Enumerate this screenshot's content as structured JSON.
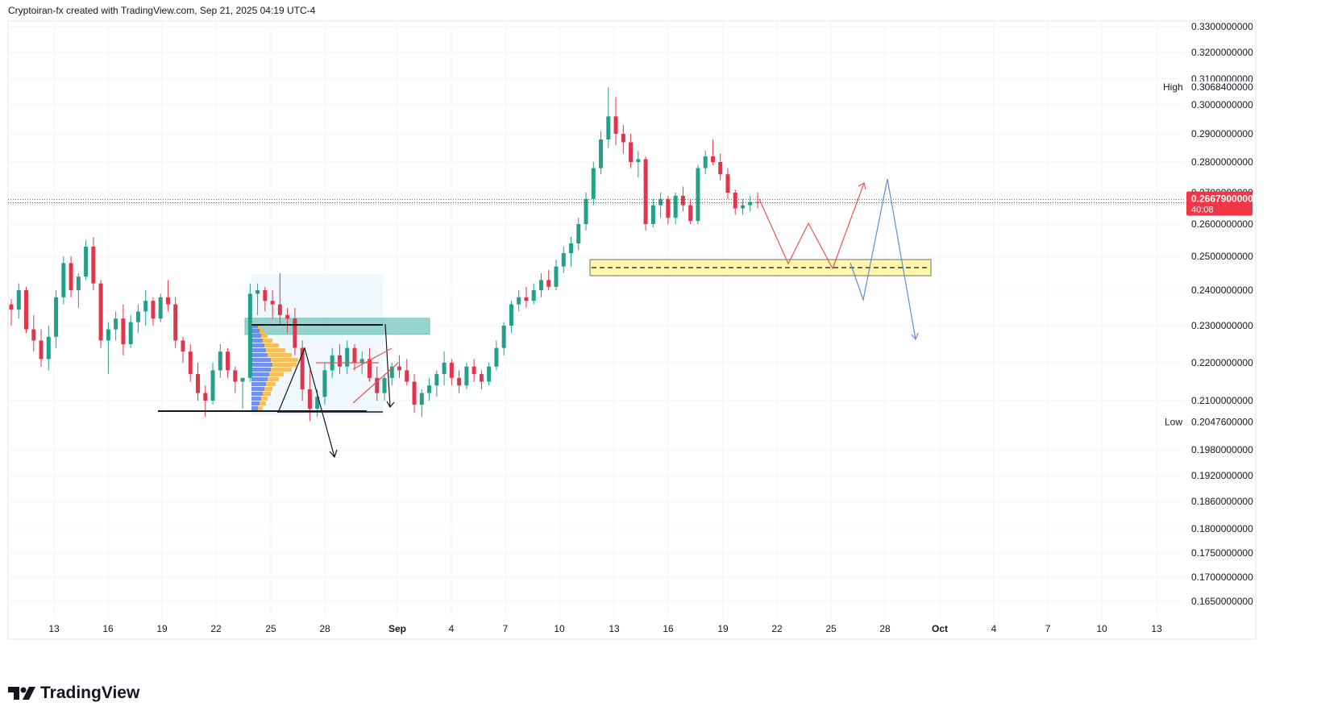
{
  "header": {
    "attribution": "Cryptoiran-fx created with TradingView.com, Sep 21, 2025 04:19 UTC-4"
  },
  "watermark": {
    "text": "TradingView",
    "icon": "tradingview-logo-icon"
  },
  "colors": {
    "up": "#22a08a",
    "down": "#e0354b",
    "grid": "#f0f3fa",
    "price_badge": "#f23645",
    "zone_green": "#80cbc4",
    "zone_yellow": "#fff59d",
    "projection_red": "#ef5350",
    "projection_blue": "#5b8fd6"
  },
  "chart_data": {
    "type": "candlestick",
    "price_axis": {
      "ticks": [
        "0.3300000000",
        "0.3200000000",
        "0.3100000000",
        "0.3000000000",
        "0.2900000000",
        "0.2800000000",
        "0.2700000000",
        "0.2600000000",
        "0.2500000000",
        "0.2400000000",
        "0.2300000000",
        "0.2200000000",
        "0.2100000000",
        "0.1980000000",
        "0.1920000000",
        "0.1860000000",
        "0.1800000000",
        "0.1750000000",
        "0.1700000000",
        "0.1650000000"
      ],
      "tick_values": [
        0.33,
        0.32,
        0.31,
        0.3,
        0.29,
        0.28,
        0.27,
        0.26,
        0.25,
        0.24,
        0.23,
        0.22,
        0.21,
        0.198,
        0.192,
        0.186,
        0.18,
        0.175,
        0.17,
        0.165
      ]
    },
    "time_axis": {
      "ticks": [
        "13",
        "16",
        "19",
        "22",
        "25",
        "28",
        "Sep",
        "4",
        "7",
        "10",
        "13",
        "16",
        "19",
        "22",
        "25",
        "28",
        "Oct",
        "4",
        "7",
        "10",
        "13"
      ]
    },
    "high": {
      "label": "High",
      "value": "0.3068400000",
      "v": 0.30684
    },
    "low": {
      "label": "Low",
      "value": "0.2047600000",
      "v": 0.20476
    },
    "current": {
      "value": "0.2667900000",
      "countdown": "40:08",
      "v": 0.26679
    },
    "candles": [
      [
        0.236,
        0.2375,
        0.23,
        0.2345
      ],
      [
        0.2345,
        0.242,
        0.232,
        0.24
      ],
      [
        0.24,
        0.241,
        0.228,
        0.229
      ],
      [
        0.229,
        0.233,
        0.223,
        0.226
      ],
      [
        0.226,
        0.229,
        0.219,
        0.221
      ],
      [
        0.221,
        0.23,
        0.218,
        0.227
      ],
      [
        0.227,
        0.24,
        0.224,
        0.238
      ],
      [
        0.238,
        0.25,
        0.236,
        0.248
      ],
      [
        0.248,
        0.25,
        0.238,
        0.24
      ],
      [
        0.24,
        0.245,
        0.235,
        0.244
      ],
      [
        0.244,
        0.255,
        0.243,
        0.253
      ],
      [
        0.253,
        0.256,
        0.24,
        0.242
      ],
      [
        0.242,
        0.243,
        0.224,
        0.226
      ],
      [
        0.226,
        0.231,
        0.217,
        0.229
      ],
      [
        0.229,
        0.234,
        0.226,
        0.232
      ],
      [
        0.232,
        0.236,
        0.222,
        0.225
      ],
      [
        0.225,
        0.233,
        0.224,
        0.231
      ],
      [
        0.231,
        0.236,
        0.228,
        0.234
      ],
      [
        0.234,
        0.24,
        0.23,
        0.237
      ],
      [
        0.237,
        0.238,
        0.23,
        0.232
      ],
      [
        0.232,
        0.239,
        0.231,
        0.238
      ],
      [
        0.238,
        0.243,
        0.234,
        0.236
      ],
      [
        0.236,
        0.238,
        0.224,
        0.226
      ],
      [
        0.226,
        0.227,
        0.22,
        0.223
      ],
      [
        0.223,
        0.225,
        0.215,
        0.217
      ],
      [
        0.217,
        0.22,
        0.21,
        0.212
      ],
      [
        0.212,
        0.214,
        0.206,
        0.21
      ],
      [
        0.21,
        0.22,
        0.209,
        0.218
      ],
      [
        0.218,
        0.225,
        0.216,
        0.223
      ],
      [
        0.223,
        0.224,
        0.216,
        0.218
      ],
      [
        0.218,
        0.219,
        0.212,
        0.215
      ],
      [
        0.215,
        0.216,
        0.208,
        0.216
      ],
      [
        0.216,
        0.242,
        0.215,
        0.239
      ],
      [
        0.239,
        0.242,
        0.233,
        0.24
      ],
      [
        0.24,
        0.241,
        0.234,
        0.237
      ],
      [
        0.237,
        0.24,
        0.232,
        0.236
      ],
      [
        0.236,
        0.245,
        0.23,
        0.233
      ],
      [
        0.233,
        0.235,
        0.228,
        0.232
      ],
      [
        0.232,
        0.235,
        0.222,
        0.224
      ],
      [
        0.224,
        0.226,
        0.21,
        0.213
      ],
      [
        0.213,
        0.218,
        0.205,
        0.208
      ],
      [
        0.208,
        0.213,
        0.206,
        0.211
      ],
      [
        0.211,
        0.22,
        0.209,
        0.218
      ],
      [
        0.218,
        0.224,
        0.216,
        0.222
      ],
      [
        0.222,
        0.225,
        0.217,
        0.219
      ],
      [
        0.219,
        0.226,
        0.217,
        0.224
      ],
      [
        0.224,
        0.225,
        0.218,
        0.22
      ],
      [
        0.22,
        0.223,
        0.217,
        0.221
      ],
      [
        0.221,
        0.224,
        0.215,
        0.216
      ],
      [
        0.216,
        0.219,
        0.21,
        0.212
      ],
      [
        0.212,
        0.217,
        0.21,
        0.216
      ],
      [
        0.216,
        0.22,
        0.214,
        0.219
      ],
      [
        0.219,
        0.222,
        0.216,
        0.218
      ],
      [
        0.218,
        0.221,
        0.214,
        0.215
      ],
      [
        0.215,
        0.217,
        0.207,
        0.209
      ],
      [
        0.209,
        0.213,
        0.206,
        0.212
      ],
      [
        0.212,
        0.216,
        0.21,
        0.214
      ],
      [
        0.214,
        0.218,
        0.211,
        0.217
      ],
      [
        0.217,
        0.223,
        0.214,
        0.22
      ],
      [
        0.22,
        0.221,
        0.214,
        0.216
      ],
      [
        0.216,
        0.218,
        0.212,
        0.214
      ],
      [
        0.214,
        0.22,
        0.213,
        0.219
      ],
      [
        0.219,
        0.221,
        0.215,
        0.217
      ],
      [
        0.217,
        0.218,
        0.213,
        0.215
      ],
      [
        0.215,
        0.22,
        0.214,
        0.219
      ],
      [
        0.219,
        0.226,
        0.218,
        0.224
      ],
      [
        0.224,
        0.231,
        0.222,
        0.23
      ],
      [
        0.23,
        0.237,
        0.228,
        0.236
      ],
      [
        0.236,
        0.24,
        0.234,
        0.238
      ],
      [
        0.238,
        0.241,
        0.235,
        0.237
      ],
      [
        0.237,
        0.242,
        0.236,
        0.24
      ],
      [
        0.24,
        0.245,
        0.238,
        0.243
      ],
      [
        0.243,
        0.246,
        0.24,
        0.241
      ],
      [
        0.241,
        0.249,
        0.24,
        0.247
      ],
      [
        0.247,
        0.253,
        0.245,
        0.251
      ],
      [
        0.251,
        0.256,
        0.247,
        0.254
      ],
      [
        0.254,
        0.262,
        0.252,
        0.26
      ],
      [
        0.26,
        0.27,
        0.258,
        0.268
      ],
      [
        0.268,
        0.28,
        0.266,
        0.278
      ],
      [
        0.278,
        0.291,
        0.276,
        0.288
      ],
      [
        0.288,
        0.3068,
        0.285,
        0.296
      ],
      [
        0.296,
        0.303,
        0.286,
        0.29
      ],
      [
        0.29,
        0.293,
        0.283,
        0.287
      ],
      [
        0.287,
        0.29,
        0.278,
        0.28
      ],
      [
        0.28,
        0.284,
        0.275,
        0.281
      ],
      [
        0.281,
        0.282,
        0.258,
        0.26
      ],
      [
        0.26,
        0.268,
        0.259,
        0.266
      ],
      [
        0.266,
        0.27,
        0.262,
        0.268
      ],
      [
        0.268,
        0.269,
        0.26,
        0.262
      ],
      [
        0.262,
        0.27,
        0.26,
        0.269
      ],
      [
        0.269,
        0.272,
        0.264,
        0.266
      ],
      [
        0.266,
        0.268,
        0.26,
        0.261
      ],
      [
        0.261,
        0.279,
        0.26,
        0.278
      ],
      [
        0.278,
        0.284,
        0.276,
        0.282
      ],
      [
        0.282,
        0.288,
        0.279,
        0.28
      ],
      [
        0.28,
        0.283,
        0.274,
        0.276
      ],
      [
        0.276,
        0.278,
        0.268,
        0.27
      ],
      [
        0.27,
        0.271,
        0.263,
        0.265
      ],
      [
        0.265,
        0.268,
        0.263,
        0.266
      ],
      [
        0.266,
        0.269,
        0.264,
        0.267
      ],
      [
        0.267,
        0.27,
        0.265,
        0.2668
      ]
    ],
    "zones": [
      {
        "name": "green-zone",
        "from": 0.2245,
        "to": 0.227
      },
      {
        "name": "yellow-zone",
        "from": 0.247,
        "to": 0.252
      }
    ]
  }
}
